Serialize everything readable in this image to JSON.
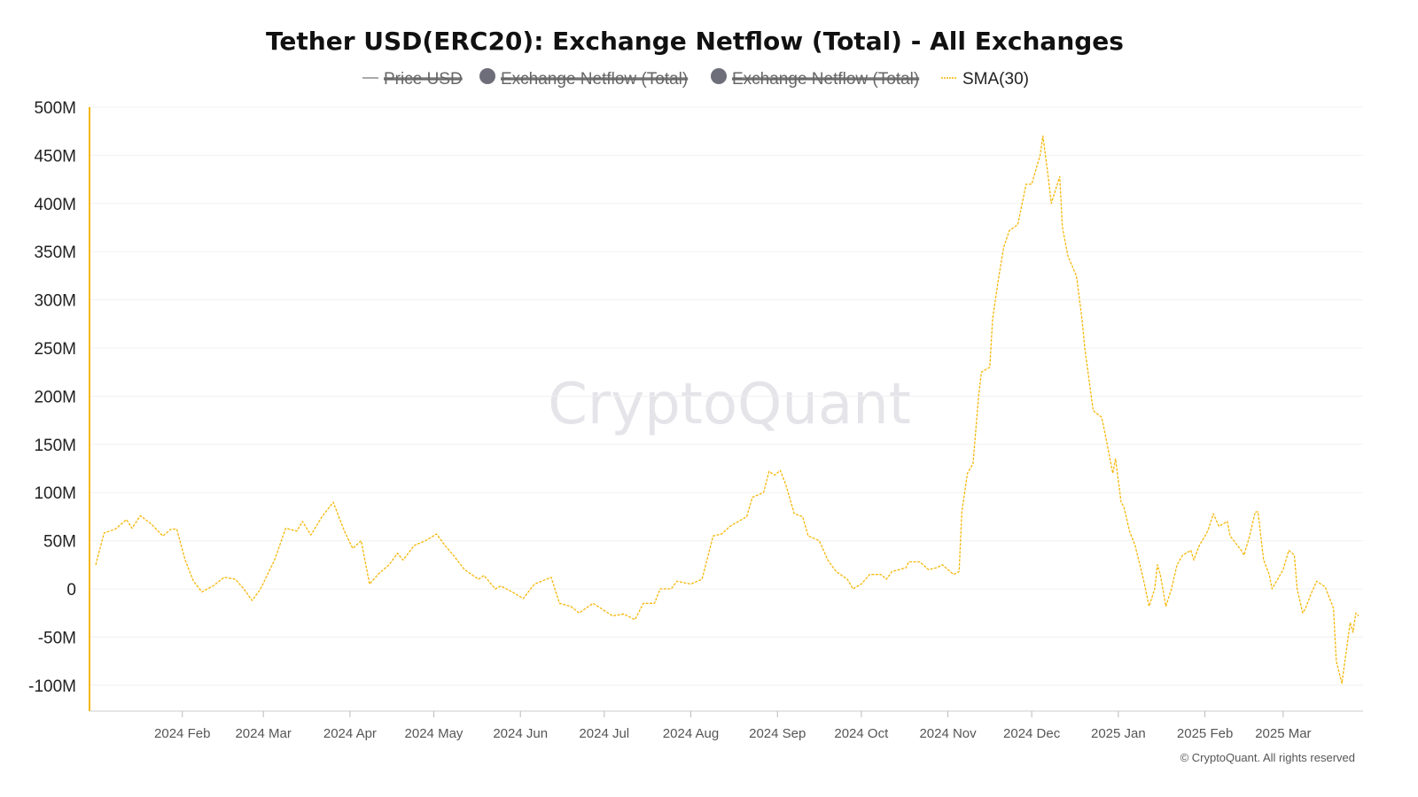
{
  "chart_data": {
    "type": "line",
    "title": "Tether USD(ERC20): Exchange Netflow (Total) - All Exchanges",
    "legend": [
      {
        "name": "Price USD",
        "marker": "line",
        "hidden": true,
        "color": "#999999"
      },
      {
        "name": "Exchange Netflow (Total)",
        "marker": "circle",
        "hidden": true,
        "color": "#6e6e7a"
      },
      {
        "name": "Exchange Netflow (Total)",
        "marker": "circle",
        "hidden": true,
        "color": "#6e6e7a"
      },
      {
        "name": "SMA(30)",
        "marker": "dashed-line",
        "hidden": false,
        "color": "#f5b70a"
      }
    ],
    "legend_position": "top-center",
    "yticks": [
      "500M",
      "450M",
      "400M",
      "350M",
      "300M",
      "250M",
      "200M",
      "150M",
      "100M",
      "50M",
      "0",
      "-50M",
      "-100M"
    ],
    "ylim": [
      -110,
      500
    ],
    "y_unit": "M",
    "xticks": [
      {
        "label": "2024 Feb",
        "date": "2024-02-01"
      },
      {
        "label": "2024 Mar",
        "date": "2024-03-01"
      },
      {
        "label": "2024 Apr",
        "date": "2024-04-01"
      },
      {
        "label": "2024 May",
        "date": "2024-05-01"
      },
      {
        "label": "2024 Jun",
        "date": "2024-06-01"
      },
      {
        "label": "2024 Jul",
        "date": "2024-07-01"
      },
      {
        "label": "2024 Aug",
        "date": "2024-08-01"
      },
      {
        "label": "2024 Sep",
        "date": "2024-09-01"
      },
      {
        "label": "2024 Oct",
        "date": "2024-10-01"
      },
      {
        "label": "2024 Nov",
        "date": "2024-11-01"
      },
      {
        "label": "2024 Dec",
        "date": "2024-12-01"
      },
      {
        "label": "2025 Jan",
        "date": "2025-01-01"
      },
      {
        "label": "2025 Feb",
        "date": "2025-02-01"
      },
      {
        "label": "2025 Mar",
        "date": "2025-03-01"
      }
    ],
    "xlim": [
      "2024-01-01",
      "2025-03-28"
    ],
    "grid": true,
    "series": [
      {
        "name": "SMA(30)",
        "color": "#f5b70a",
        "points": [
          [
            "2024-01-01",
            25
          ],
          [
            "2024-01-04",
            58
          ],
          [
            "2024-01-08",
            62
          ],
          [
            "2024-01-12",
            72
          ],
          [
            "2024-01-14",
            63
          ],
          [
            "2024-01-17",
            76
          ],
          [
            "2024-01-21",
            67
          ],
          [
            "2024-01-25",
            55
          ],
          [
            "2024-01-28",
            62
          ],
          [
            "2024-01-30",
            62
          ],
          [
            "2024-02-02",
            30
          ],
          [
            "2024-02-05",
            8
          ],
          [
            "2024-02-08",
            -3
          ],
          [
            "2024-02-12",
            3
          ],
          [
            "2024-02-16",
            12
          ],
          [
            "2024-02-20",
            10
          ],
          [
            "2024-02-23",
            0
          ],
          [
            "2024-02-26",
            -12
          ],
          [
            "2024-02-29",
            0
          ],
          [
            "2024-03-05",
            30
          ],
          [
            "2024-03-09",
            63
          ],
          [
            "2024-03-13",
            60
          ],
          [
            "2024-03-15",
            70
          ],
          [
            "2024-03-18",
            56
          ],
          [
            "2024-03-22",
            75
          ],
          [
            "2024-03-26",
            90
          ],
          [
            "2024-03-30",
            60
          ],
          [
            "2024-04-02",
            42
          ],
          [
            "2024-04-05",
            50
          ],
          [
            "2024-04-08",
            5
          ],
          [
            "2024-04-11",
            15
          ],
          [
            "2024-04-15",
            25
          ],
          [
            "2024-04-18",
            37
          ],
          [
            "2024-04-20",
            30
          ],
          [
            "2024-04-24",
            45
          ],
          [
            "2024-04-28",
            50
          ],
          [
            "2024-05-02",
            57
          ],
          [
            "2024-05-05",
            45
          ],
          [
            "2024-05-08",
            35
          ],
          [
            "2024-05-12",
            20
          ],
          [
            "2024-05-17",
            10
          ],
          [
            "2024-05-19",
            14
          ],
          [
            "2024-05-23",
            0
          ],
          [
            "2024-05-25",
            3
          ],
          [
            "2024-05-29",
            -3
          ],
          [
            "2024-06-02",
            -10
          ],
          [
            "2024-06-06",
            5
          ],
          [
            "2024-06-12",
            12
          ],
          [
            "2024-06-15",
            -15
          ],
          [
            "2024-06-19",
            -18
          ],
          [
            "2024-06-22",
            -25
          ],
          [
            "2024-06-27",
            -15
          ],
          [
            "2024-07-04",
            -28
          ],
          [
            "2024-07-08",
            -26
          ],
          [
            "2024-07-12",
            -32
          ],
          [
            "2024-07-15",
            -15
          ],
          [
            "2024-07-19",
            -15
          ],
          [
            "2024-07-21",
            0
          ],
          [
            "2024-07-25",
            0
          ],
          [
            "2024-07-27",
            8
          ],
          [
            "2024-08-01",
            5
          ],
          [
            "2024-08-05",
            10
          ],
          [
            "2024-08-09",
            55
          ],
          [
            "2024-08-12",
            57
          ],
          [
            "2024-08-15",
            65
          ],
          [
            "2024-08-21",
            75
          ],
          [
            "2024-08-23",
            95
          ],
          [
            "2024-08-27",
            100
          ],
          [
            "2024-08-29",
            122
          ],
          [
            "2024-08-31",
            118
          ],
          [
            "2024-09-02",
            123
          ],
          [
            "2024-09-04",
            108
          ],
          [
            "2024-09-07",
            78
          ],
          [
            "2024-09-10",
            75
          ],
          [
            "2024-09-12",
            55
          ],
          [
            "2024-09-16",
            50
          ],
          [
            "2024-09-19",
            30
          ],
          [
            "2024-09-22",
            18
          ],
          [
            "2024-09-26",
            10
          ],
          [
            "2024-09-28",
            0
          ],
          [
            "2024-10-01",
            5
          ],
          [
            "2024-10-04",
            15
          ],
          [
            "2024-10-08",
            15
          ],
          [
            "2024-10-10",
            10
          ],
          [
            "2024-10-12",
            18
          ],
          [
            "2024-10-17",
            22
          ],
          [
            "2024-10-18",
            28
          ],
          [
            "2024-10-22",
            28
          ],
          [
            "2024-10-25",
            20
          ],
          [
            "2024-10-28",
            22
          ],
          [
            "2024-10-30",
            25
          ],
          [
            "2024-11-01",
            20
          ],
          [
            "2024-11-03",
            15
          ],
          [
            "2024-11-05",
            18
          ],
          [
            "2024-11-06",
            80
          ],
          [
            "2024-11-08",
            120
          ],
          [
            "2024-11-10",
            130
          ],
          [
            "2024-11-12",
            200
          ],
          [
            "2024-11-13",
            225
          ],
          [
            "2024-11-16",
            230
          ],
          [
            "2024-11-17",
            280
          ],
          [
            "2024-11-19",
            320
          ],
          [
            "2024-11-21",
            355
          ],
          [
            "2024-11-23",
            372
          ],
          [
            "2024-11-26",
            378
          ],
          [
            "2024-11-29",
            420
          ],
          [
            "2024-12-01",
            420
          ],
          [
            "2024-12-03",
            440
          ],
          [
            "2024-12-04",
            450
          ],
          [
            "2024-12-05",
            470
          ],
          [
            "2024-12-07",
            425
          ],
          [
            "2024-12-08",
            400
          ],
          [
            "2024-12-11",
            428
          ],
          [
            "2024-12-12",
            375
          ],
          [
            "2024-12-14",
            345
          ],
          [
            "2024-12-17",
            325
          ],
          [
            "2024-12-19",
            280
          ],
          [
            "2024-12-20",
            250
          ],
          [
            "2024-12-23",
            185
          ],
          [
            "2024-12-26",
            178
          ],
          [
            "2024-12-27",
            165
          ],
          [
            "2024-12-30",
            120
          ],
          [
            "2024-12-31",
            135
          ],
          [
            "2025-01-02",
            90
          ],
          [
            "2025-01-03",
            85
          ],
          [
            "2025-01-05",
            60
          ],
          [
            "2025-01-07",
            45
          ],
          [
            "2025-01-10",
            10
          ],
          [
            "2025-01-12",
            -18
          ],
          [
            "2025-01-14",
            0
          ],
          [
            "2025-01-15",
            25
          ],
          [
            "2025-01-16",
            15
          ],
          [
            "2025-01-18",
            -18
          ],
          [
            "2025-01-20",
            0
          ],
          [
            "2025-01-22",
            25
          ],
          [
            "2025-01-24",
            35
          ],
          [
            "2025-01-27",
            40
          ],
          [
            "2025-01-28",
            30
          ],
          [
            "2025-01-30",
            45
          ],
          [
            "2025-02-02",
            60
          ],
          [
            "2025-02-04",
            78
          ],
          [
            "2025-02-06",
            65
          ],
          [
            "2025-02-09",
            70
          ],
          [
            "2025-02-10",
            55
          ],
          [
            "2025-02-14",
            40
          ],
          [
            "2025-02-15",
            35
          ],
          [
            "2025-02-17",
            55
          ],
          [
            "2025-02-19",
            80
          ],
          [
            "2025-02-20",
            80
          ],
          [
            "2025-02-22",
            30
          ],
          [
            "2025-02-24",
            15
          ],
          [
            "2025-02-25",
            0
          ],
          [
            "2025-03-01",
            20
          ],
          [
            "2025-03-02",
            30
          ],
          [
            "2025-03-03",
            40
          ],
          [
            "2025-03-05",
            35
          ],
          [
            "2025-03-06",
            0
          ],
          [
            "2025-03-08",
            -25
          ],
          [
            "2025-03-09",
            -20
          ],
          [
            "2025-03-11",
            -5
          ],
          [
            "2025-03-13",
            8
          ],
          [
            "2025-03-16",
            2
          ],
          [
            "2025-03-19",
            -20
          ],
          [
            "2025-03-20",
            -75
          ],
          [
            "2025-03-22",
            -98
          ],
          [
            "2025-03-25",
            -35
          ],
          [
            "2025-03-26",
            -45
          ],
          [
            "2025-03-27",
            -25
          ],
          [
            "2025-03-28",
            -28
          ]
        ]
      }
    ],
    "watermark": "CryptoQuant",
    "footer": "© CryptoQuant. All rights reserved"
  }
}
